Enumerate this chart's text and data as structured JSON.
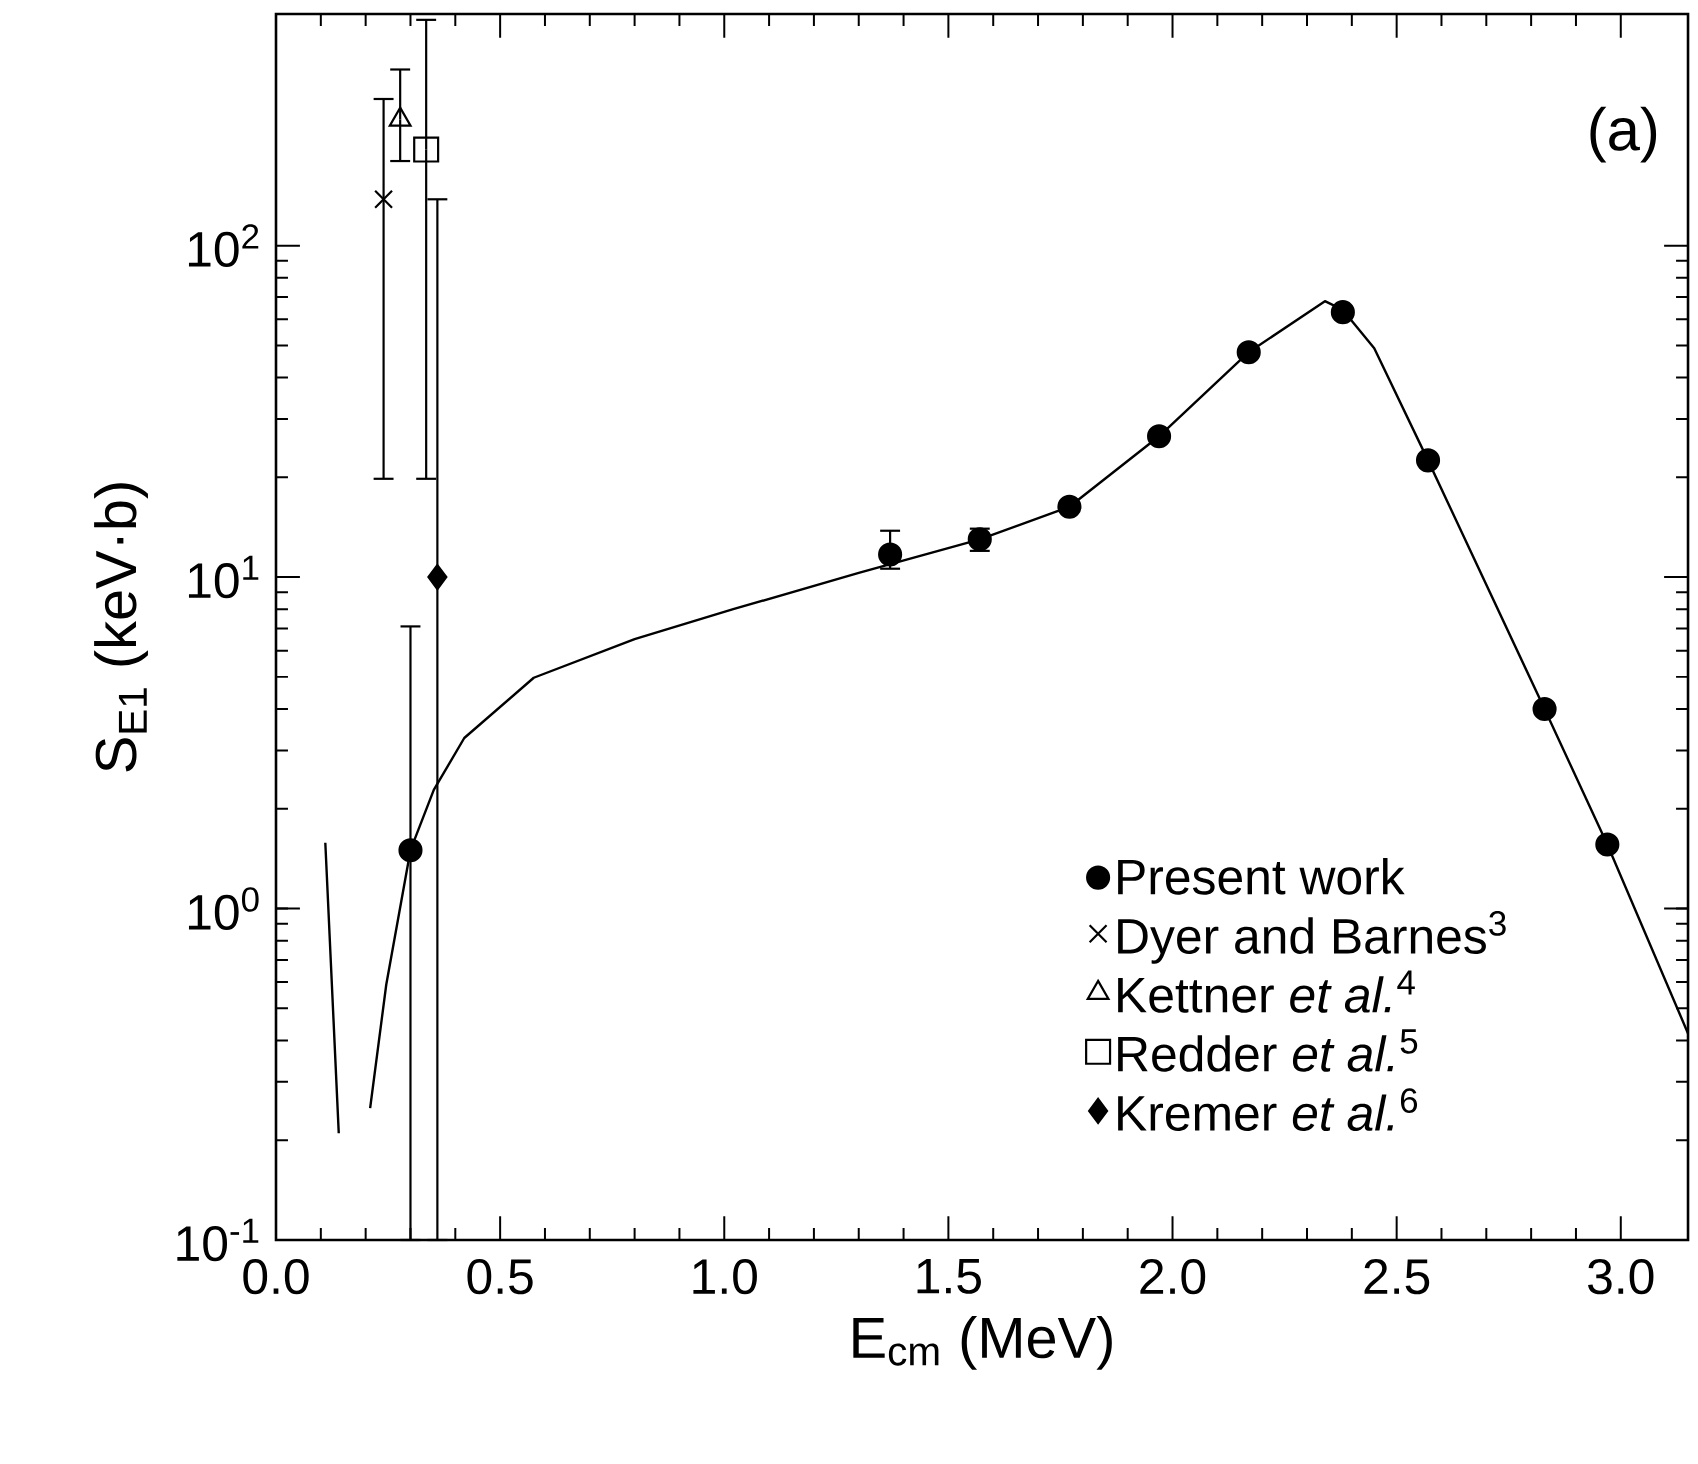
{
  "chart_data": {
    "type": "scatter",
    "xlabel": "E$_{cm}$ (MeV)",
    "ylabel": "S$_{E1}$ (keV·b)",
    "annotations": [
      "(a)"
    ],
    "log": "y",
    "legend": "bottom right",
    "xlim": [
      0,
      3.15
    ],
    "ylim": [
      0.1,
      500
    ],
    "xticks": [
      {
        "value": 0,
        "label": "0.0"
      },
      0.5,
      {
        "value": 1,
        "label": "1.0"
      },
      1.5,
      {
        "value": 2,
        "label": "2.0"
      },
      2.5,
      {
        "value": 3,
        "label": "3.0"
      }
    ],
    "yticks": [
      {
        "value": 0.1,
        "label": "10$^{-1}$"
      },
      {
        "value": 1,
        "label": "10$^{0}$"
      },
      {
        "value": 10,
        "label": "10$^{1}$"
      },
      {
        "value": 100,
        "label": "10$^{2}$"
      }
    ],
    "series": [
      {
        "name": "Present work",
        "marker": "circle",
        "color": "#000000",
        "x": [
          0.3,
          1.37,
          1.57,
          1.77,
          1.97,
          2.17,
          2.38,
          2.57,
          2.83,
          2.97
        ],
        "values": [
          1.5,
          11.7,
          13.0,
          16.3,
          26.6,
          47.7,
          63,
          22.5,
          4.0,
          1.56
        ],
        "errors": [
          [
            0.1,
            7.1
          ],
          [
            10.6,
            13.8
          ],
          [
            12.0,
            14.0
          ],
          null,
          null,
          null,
          null,
          null,
          null,
          null
        ]
      },
      {
        "name": "Dyer and Barnes$^{3}$",
        "marker": "cross",
        "color": "#000000",
        "x": [
          0.24
        ],
        "values": [
          138
        ],
        "errors": [
          [
            19.8,
            277
          ]
        ]
      },
      {
        "name": "Kettner *et al.*$^{4}$",
        "marker": "triangle",
        "color": "#000000",
        "x": [
          0.277
        ],
        "values": [
          240
        ],
        "errors": [
          [
            180,
            340
          ]
        ]
      },
      {
        "name": "Redder *et al.*$^{5}$",
        "marker": "square",
        "color": "#000000",
        "x": [
          0.335
        ],
        "values": [
          195
        ],
        "errors": [
          [
            19.8,
            480
          ]
        ]
      },
      {
        "name": "Kremer *et al.*$^{6}$",
        "marker": "diamond",
        "color": "#000000",
        "x": [
          0.36
        ],
        "values": [
          10
        ],
        "errors": [
          [
            0.1,
            138
          ]
        ]
      },
      {
        "type": "line",
        "marker": "none",
        "line_style": "solid",
        "color": "#000000",
        "x": [
          0.11,
          0.14,
          0.17,
          0.21,
          0.246,
          0.3,
          0.352,
          0.42,
          0.575,
          0.8,
          1.02,
          1.3,
          1.57,
          1.77,
          1.97,
          2.17,
          2.34,
          2.38,
          2.45,
          2.57,
          2.83,
          2.97,
          3.15
        ],
        "values": [
          1.58,
          0.21,
          null,
          0.25,
          0.59,
          1.5,
          2.28,
          3.27,
          4.97,
          6.5,
          8.0,
          10.3,
          13.0,
          16.3,
          26.6,
          47.7,
          68,
          64,
          49,
          22.5,
          4.0,
          1.56,
          0.42
        ]
      }
    ]
  }
}
